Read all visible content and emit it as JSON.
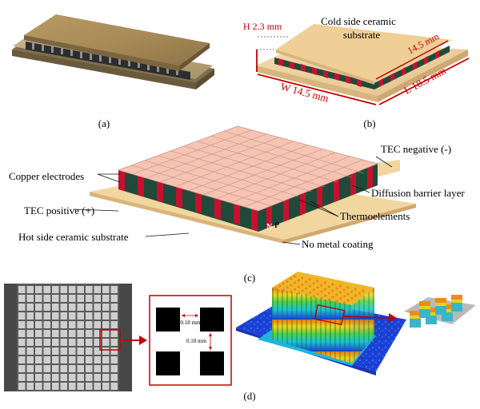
{
  "panels": {
    "a": "(a)",
    "b": "(b)",
    "c": "(c)",
    "d": "(d)"
  },
  "panel_b": {
    "height": "H 2.3 mm",
    "cold_side_line1": "Cold side ceramic",
    "cold_side_line2": "substrate",
    "top_width": "14.5 mm",
    "width": "W 14.5 mm",
    "length": "L 18.5 mm"
  },
  "panel_c": {
    "copper_electrodes": "Copper electrodes",
    "tec_negative": "TEC negative (-)",
    "diffusion_barrier": "Diffusion barrier layer",
    "tec_positive": "TEC positive (+)",
    "thermoelements": "Thermoelements",
    "hot_side": "Hot side ceramic substrate",
    "no_metal": "No metal coating",
    "n_mark": "N",
    "p_mark": "P"
  },
  "panel_d": {
    "gap_horizontal": "0.18 mm",
    "gap_vertical": "0.18 mm"
  },
  "colors": {
    "ceramic": "#f1d7a6",
    "electrode": "#f6c1b0",
    "p_leg": "#c8102e",
    "n_leg": "#1f4a3a",
    "annotation": "#c00000"
  }
}
